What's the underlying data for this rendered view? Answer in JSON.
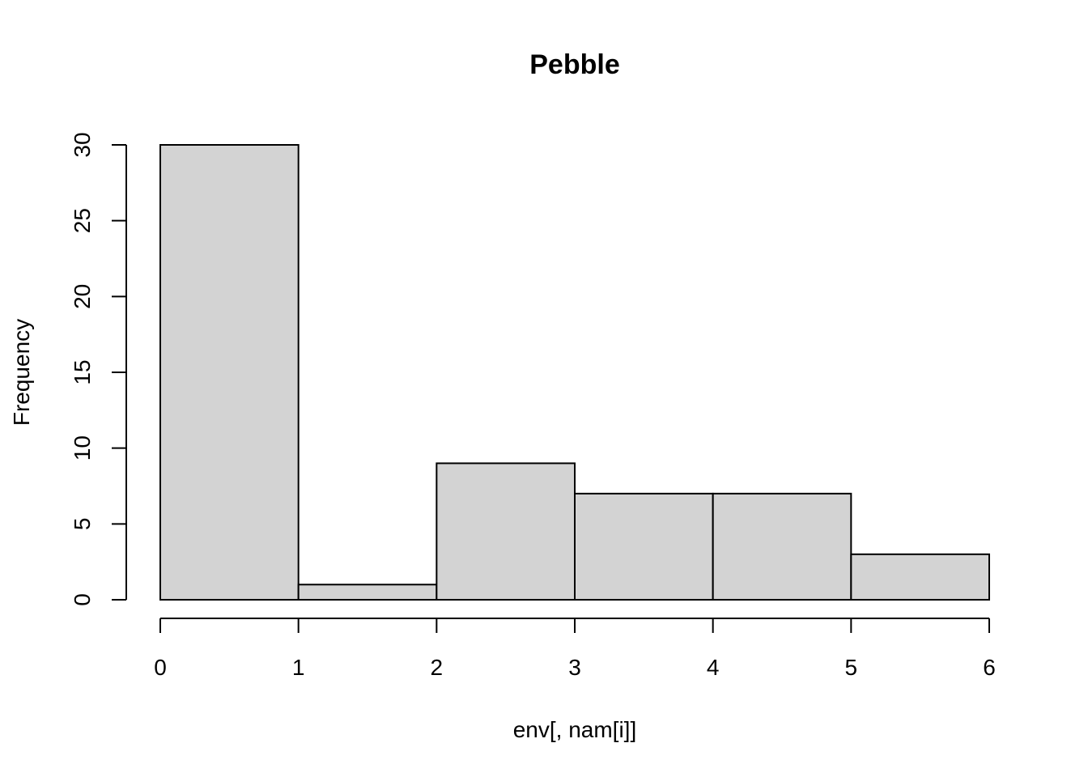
{
  "chart_data": {
    "type": "bar",
    "subtype": "histogram",
    "title": "Pebble",
    "xlabel": "env[, nam[i]]",
    "ylabel": "Frequency",
    "bins": [
      {
        "start": 0,
        "end": 1,
        "count": 30
      },
      {
        "start": 1,
        "end": 2,
        "count": 1
      },
      {
        "start": 2,
        "end": 3,
        "count": 9
      },
      {
        "start": 3,
        "end": 4,
        "count": 7
      },
      {
        "start": 4,
        "end": 5,
        "count": 7
      },
      {
        "start": 5,
        "end": 6,
        "count": 3
      }
    ],
    "xlim": [
      0,
      6
    ],
    "ylim": [
      0,
      30
    ],
    "x_ticks": [
      "0",
      "1",
      "2",
      "3",
      "4",
      "5",
      "6"
    ],
    "y_ticks": [
      "0",
      "5",
      "10",
      "15",
      "20",
      "25",
      "30"
    ],
    "grid": false,
    "colors": {
      "bar_fill": "#d3d3d3",
      "bar_stroke": "#000000",
      "axis": "#000000",
      "background": "#ffffff"
    }
  }
}
